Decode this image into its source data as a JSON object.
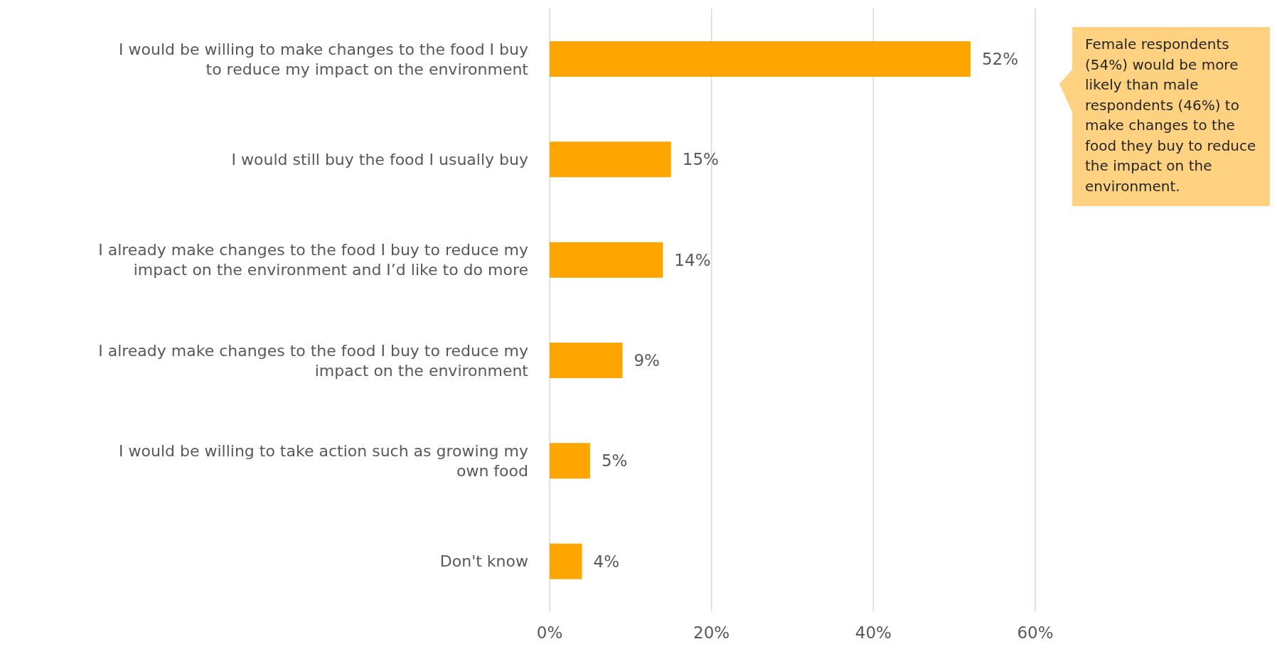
{
  "chart_data": {
    "type": "bar",
    "orientation": "horizontal",
    "categories": [
      "I would be willing to make changes to the food I buy to reduce my impact on the environment",
      "I would still buy the food I usually buy",
      "I already make changes to the food I buy to reduce my impact on the environment and I’d like to do more",
      "I already make changes to the food I buy to reduce my impact on the environment",
      "I would be willing to take action such as growing my own food",
      "Don't know"
    ],
    "values": [
      52,
      15,
      14,
      9,
      5,
      4
    ],
    "value_labels": [
      "52%",
      "15%",
      "14%",
      "9%",
      "5%",
      "4%"
    ],
    "color": "#ffa500",
    "xlim": [
      0,
      60
    ],
    "xticks": [
      {
        "value": 0,
        "label": "0%"
      },
      {
        "value": 20,
        "label": "20%"
      },
      {
        "value": 40,
        "label": "40%"
      },
      {
        "value": 60,
        "label": "60%"
      }
    ],
    "grid": "x",
    "annotations": [
      "Female respondents (54%)  would be more likely than male respondents (46%) to make changes to the food they buy to reduce the impact on the environment."
    ]
  }
}
